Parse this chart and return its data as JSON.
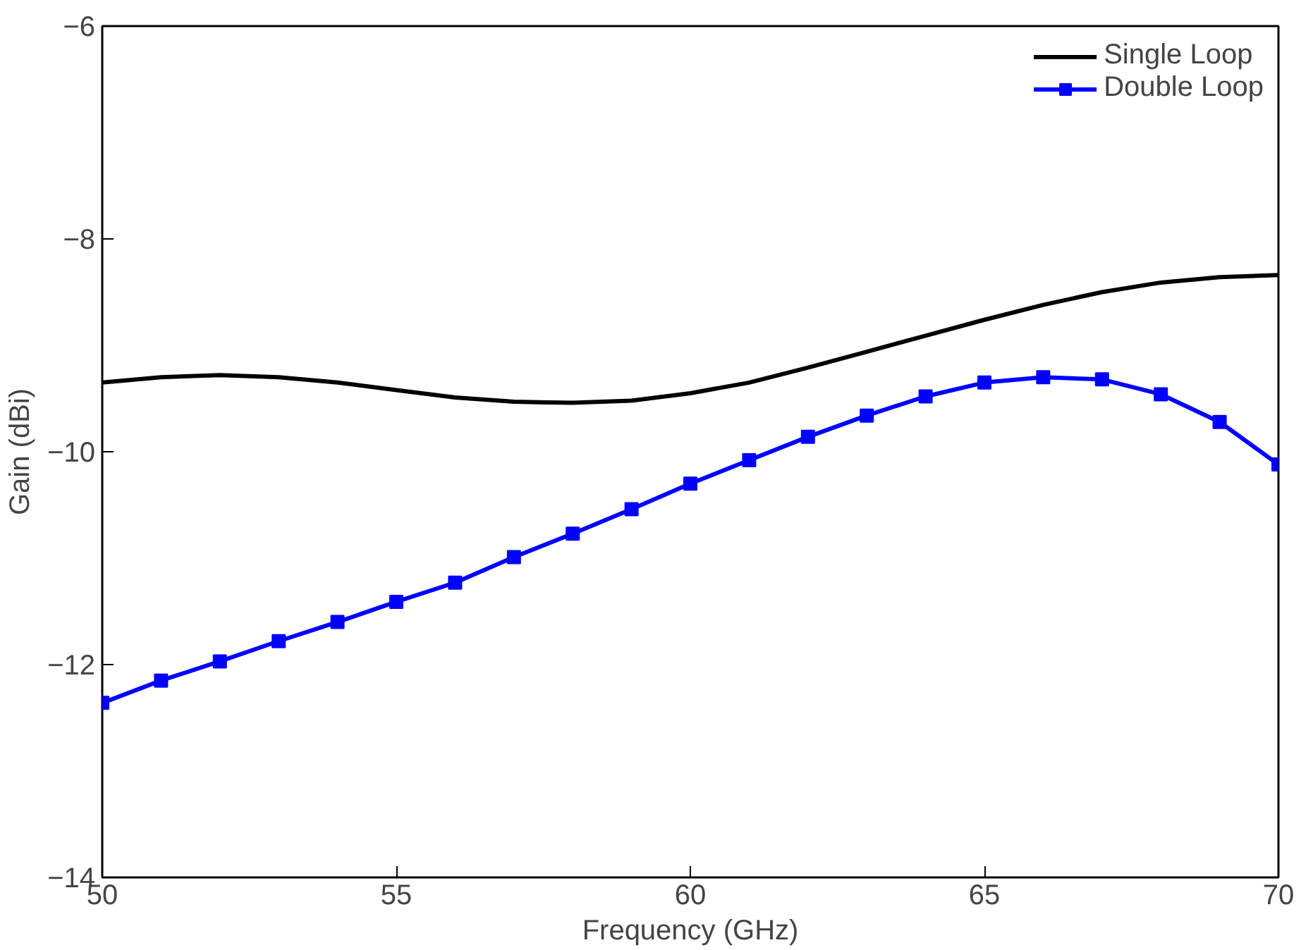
{
  "chart_data": {
    "type": "line",
    "xlabel": "Frequency (GHz)",
    "ylabel": "Gain (dBi)",
    "x": [
      50,
      51,
      52,
      53,
      54,
      55,
      56,
      57,
      58,
      59,
      60,
      61,
      62,
      63,
      64,
      65,
      66,
      67,
      68,
      69,
      70
    ],
    "xlim": [
      50,
      70
    ],
    "xticks": [
      50,
      55,
      60,
      65,
      70
    ],
    "ylim": [
      -14,
      -6
    ],
    "yticks": [
      -14,
      -12,
      -10,
      -8,
      -6
    ],
    "grid": false,
    "legend": "top right",
    "line_style": "solid",
    "series": [
      {
        "name": "Single Loop",
        "color": "#000000",
        "marker": "none",
        "values": [
          -9.35,
          -9.3,
          -9.28,
          -9.3,
          -9.35,
          -9.42,
          -9.49,
          -9.53,
          -9.54,
          -9.52,
          -9.45,
          -9.35,
          -9.21,
          -9.06,
          -8.91,
          -8.76,
          -8.62,
          -8.5,
          -8.41,
          -8.36,
          -8.34
        ]
      },
      {
        "name": "Double Loop",
        "color": "#0000ff",
        "marker": "square",
        "values": [
          -12.36,
          -12.15,
          -11.97,
          -11.78,
          -11.6,
          -11.41,
          -11.23,
          -10.99,
          -10.77,
          -10.54,
          -10.3,
          -10.08,
          -9.86,
          -9.66,
          -9.48,
          -9.35,
          -9.3,
          -9.32,
          -9.46,
          -9.72,
          -10.12
        ]
      }
    ]
  }
}
